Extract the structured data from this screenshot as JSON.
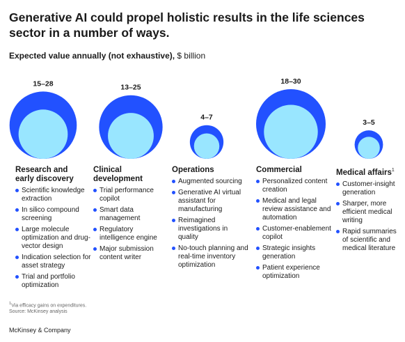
{
  "title": "Generative AI could propel holistic results in the life sciences sector in a number of ways.",
  "subtitle_bold": "Expected value annually (not exhaustive),",
  "subtitle_unit": "$ billion",
  "colors": {
    "outer": "#2251ff",
    "inner": "#99e6ff",
    "bullet": "#2251ff"
  },
  "chart_data": {
    "type": "bubble",
    "series": [
      {
        "name": "Minimum",
        "color": "#99e6ff"
      },
      {
        "name": "Maximum",
        "color": "#2251ff"
      }
    ],
    "categories": [
      "Research and early discovery",
      "Clinical development",
      "Operations",
      "Commercial",
      "Medical affairs"
    ],
    "data": [
      {
        "category": "Research and early discovery",
        "min": 15,
        "max": 28,
        "label": "15–28"
      },
      {
        "category": "Clinical development",
        "min": 13,
        "max": 25,
        "label": "13–25"
      },
      {
        "category": "Operations",
        "min": 4,
        "max": 7,
        "label": "4–7"
      },
      {
        "category": "Commercial",
        "min": 18,
        "max": 30,
        "label": "18–30"
      },
      {
        "category": "Medical affairs",
        "min": 3,
        "max": 5,
        "label": "3–5"
      }
    ]
  },
  "columns": [
    {
      "title": "Research and early discovery",
      "sup": "",
      "items": [
        "Scientific knowledge extraction",
        "In silico compound screening",
        "Large molecule optimization and drug-vector design",
        "Indication selection for asset strategy",
        "Trial and portfolio optimization"
      ]
    },
    {
      "title": "Clinical development",
      "sup": "",
      "items": [
        "Trial performance copilot",
        "Smart data management",
        "Regulatory intelligence engine",
        "Major submission content writer"
      ]
    },
    {
      "title": "Operations",
      "sup": "",
      "items": [
        "Augmented sourcing",
        "Generative AI virtual assistant for manufacturing",
        "Reimagined investigations in quality",
        "No-touch planning and real-time inventory optimization"
      ]
    },
    {
      "title": "Commercial",
      "sup": "",
      "items": [
        "Personalized content creation",
        "Medical and legal review assistance and automation",
        "Customer-enablement copilot",
        "Strategic insights generation",
        "Patient experience optimization"
      ]
    },
    {
      "title": "Medical affairs",
      "sup": "1",
      "items": [
        "Customer-insight generation",
        "Sharper, more efficient medical writing",
        "Rapid summaries of scientific and medical literature"
      ]
    }
  ],
  "footnotes": {
    "note_mark": "1",
    "note_text": "Via efficacy gains on expenditures.",
    "source": "Source: McKinsey analysis"
  },
  "brand": "McKinsey & Company"
}
